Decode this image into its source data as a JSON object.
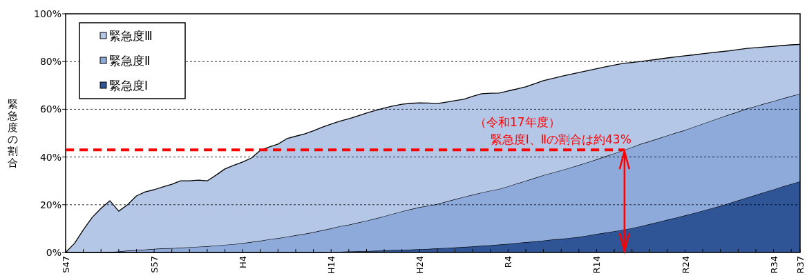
{
  "chart_data": {
    "type": "area",
    "stacked": true,
    "ylabel": "緊急度の割合",
    "categories": [
      "S47",
      null,
      null,
      null,
      null,
      null,
      null,
      null,
      null,
      null,
      "S57",
      null,
      null,
      null,
      null,
      null,
      null,
      null,
      null,
      null,
      "H4",
      null,
      null,
      null,
      null,
      null,
      null,
      null,
      null,
      null,
      "H14",
      null,
      null,
      null,
      null,
      null,
      null,
      null,
      null,
      null,
      "H24",
      null,
      null,
      null,
      null,
      null,
      null,
      null,
      null,
      null,
      "R4",
      null,
      null,
      null,
      null,
      null,
      null,
      null,
      null,
      null,
      "R14",
      null,
      null,
      null,
      null,
      null,
      null,
      null,
      null,
      null,
      "R24",
      null,
      null,
      null,
      null,
      null,
      null,
      null,
      null,
      null,
      "R34",
      null,
      null,
      "R37"
    ],
    "series": [
      {
        "name": "緊急度Ⅰ",
        "color": "#2f5597",
        "values": [
          0,
          0,
          0,
          0,
          0,
          0,
          0,
          0,
          0,
          0,
          0,
          0,
          0,
          0,
          0,
          0,
          0,
          0,
          0,
          0,
          0,
          0,
          0,
          0,
          0,
          0,
          0,
          0,
          0,
          0,
          0.1,
          0.3,
          0.4,
          0.5,
          0.6,
          0.7,
          0.8,
          1.0,
          1.1,
          1.2,
          1.4,
          1.5,
          1.7,
          1.9,
          2.1,
          2.3,
          2.5,
          2.8,
          3.0,
          3.3,
          3.6,
          4.0,
          4.3,
          4.6,
          5.0,
          5.4,
          5.7,
          6.1,
          6.5,
          7.1,
          7.7,
          8.3,
          8.9,
          9.5,
          10.2,
          11,
          11.9,
          12.8,
          13.7,
          14.6,
          15.5,
          16.5,
          17.5,
          18.5,
          19.5,
          20.7,
          21.8,
          23,
          24.1,
          25.3,
          26.4,
          27.6,
          28.7,
          29.8
        ]
      },
      {
        "name": "緊急度Ⅱ",
        "color": "#8eaadb",
        "values": [
          0,
          0,
          0,
          0,
          0.1,
          0.2,
          0.4,
          0.8,
          1.0,
          1.2,
          1.5,
          1.7,
          1.8,
          2.0,
          2.2,
          2.4,
          2.6,
          2.9,
          3.2,
          3.5,
          3.9,
          4.4,
          4.9,
          5.5,
          6.0,
          6.6,
          7.2,
          7.8,
          8.5,
          9.3,
          10.0,
          10.7,
          11.2,
          12.0,
          12.7,
          13.5,
          14.4,
          15.2,
          16.1,
          16.9,
          17.6,
          18.1,
          18.6,
          19.4,
          20.2,
          21.0,
          21.7,
          22.3,
          22.9,
          23.3,
          24.1,
          24.9,
          25.7,
          26.6,
          27.4,
          28.0,
          28.7,
          29.4,
          30.1,
          30.7,
          31.3,
          32.0,
          32.6,
          33.3,
          33.9,
          34.5,
          34.7,
          35.0,
          35.3,
          35.6,
          35.8,
          36.1,
          36.4,
          36.7,
          37.0,
          37.1,
          37.2,
          37.3,
          37.2,
          37.1,
          37.0,
          36.9,
          36.8,
          36.7
        ]
      },
      {
        "name": "緊急度Ⅲ",
        "color": "#b4c7e7",
        "values": [
          0,
          3.8,
          9.5,
          14.7,
          18.4,
          21.5,
          16.9,
          19.2,
          22.7,
          24.2,
          24.8,
          25.8,
          26.8,
          28.0,
          27.8,
          27.9,
          27.4,
          29.5,
          31.8,
          33.0,
          34.0,
          35.2,
          37.9,
          38.7,
          39.4,
          41.1,
          41.5,
          41.9,
          42.5,
          43.2,
          43.7,
          44.0,
          44.4,
          44.7,
          45.1,
          45.3,
          45.3,
          45.2,
          44.9,
          44.4,
          43.7,
          43.0,
          42.1,
          41.7,
          41.3,
          40.9,
          41.2,
          41.4,
          40.8,
          40.2,
          40.0,
          39.6,
          39.4,
          39.5,
          39.6,
          39.5,
          39.4,
          39.1,
          38.8,
          38.4,
          38.0,
          37.5,
          37.0,
          36.4,
          35.5,
          34.5,
          33.9,
          33.2,
          32.5,
          31.8,
          31.1,
          30.2,
          29.4,
          28.5,
          27.6,
          26.7,
          26.0,
          25.2,
          24.5,
          23.7,
          23.0,
          22.2,
          21.5,
          20.7
        ]
      }
    ],
    "ylim": [
      0,
      100
    ],
    "yticks": [
      {
        "value": 0,
        "label": "0%"
      },
      {
        "value": 20,
        "label": "20%"
      },
      {
        "value": 40,
        "label": "40%"
      },
      {
        "value": 60,
        "label": "60%"
      },
      {
        "value": 80,
        "label": "80%"
      },
      {
        "value": 100,
        "label": "100%"
      }
    ],
    "grid": "y",
    "legend": "top left",
    "ref_lines": [
      {
        "axis": "y",
        "value": 43,
        "color": "#ff0000",
        "line_style": "dashed"
      }
    ],
    "annotations": [
      "（令和17年度）",
      {
        "text": "緊急度Ⅰ、Ⅱの割合は約43%",
        "y": 43
      }
    ]
  }
}
